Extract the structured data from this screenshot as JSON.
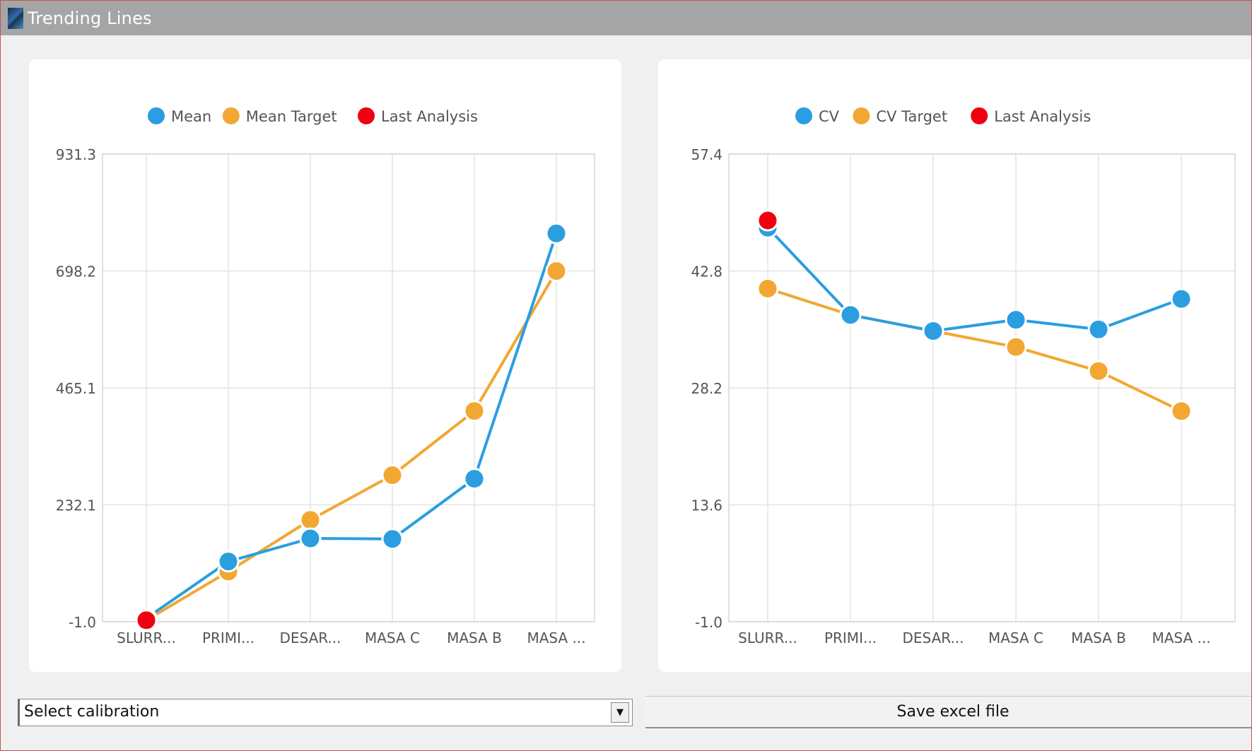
{
  "window": {
    "title": "Trending Lines"
  },
  "controls": {
    "calibration_select_value": "Select calibration",
    "save_button_label": "Save excel file"
  },
  "colors": {
    "blue": "#2a9ee0",
    "orange": "#f2a733",
    "red": "#ee0010"
  },
  "chart_data": [
    {
      "type": "line",
      "categories": [
        "SLURR...",
        "PRIMI...",
        "DESAR...",
        "MASA C",
        "MASA B",
        "MASA ..."
      ],
      "legend_position": "top",
      "grid": true,
      "ylim": [
        -1.0,
        931.3
      ],
      "yticks": [
        "931.3",
        "698.2",
        "465.1",
        "232.1",
        "-1.0"
      ],
      "series": [
        {
          "name": "Mean",
          "color": "#2a9ee0",
          "values": [
            6,
            119,
            165,
            164,
            284,
            773
          ]
        },
        {
          "name": "Mean Target",
          "color": "#f2a733",
          "values": [
            2,
            99,
            202,
            291,
            419,
            698
          ]
        },
        {
          "name": "Last Analysis",
          "color": "#ee0010",
          "values": [
            2,
            null,
            null,
            null,
            null,
            null
          ]
        }
      ]
    },
    {
      "type": "line",
      "categories": [
        "SLURR...",
        "PRIMI...",
        "DESAR...",
        "MASA C",
        "MASA B",
        "MASA ..."
      ],
      "legend_position": "top",
      "grid": true,
      "ylim": [
        -1.0,
        57.4
      ],
      "yticks": [
        "57.4",
        "42.8",
        "28.2",
        "13.6",
        "-1.0"
      ],
      "series": [
        {
          "name": "CV",
          "color": "#2a9ee0",
          "values": [
            48.2,
            37.3,
            35.3,
            36.7,
            35.5,
            39.3
          ]
        },
        {
          "name": "CV Target",
          "color": "#f2a733",
          "values": [
            40.6,
            37.3,
            35.3,
            33.3,
            30.3,
            25.3
          ]
        },
        {
          "name": "Last Analysis",
          "color": "#ee0010",
          "values": [
            49.1,
            null,
            null,
            null,
            null,
            null
          ]
        }
      ]
    }
  ]
}
